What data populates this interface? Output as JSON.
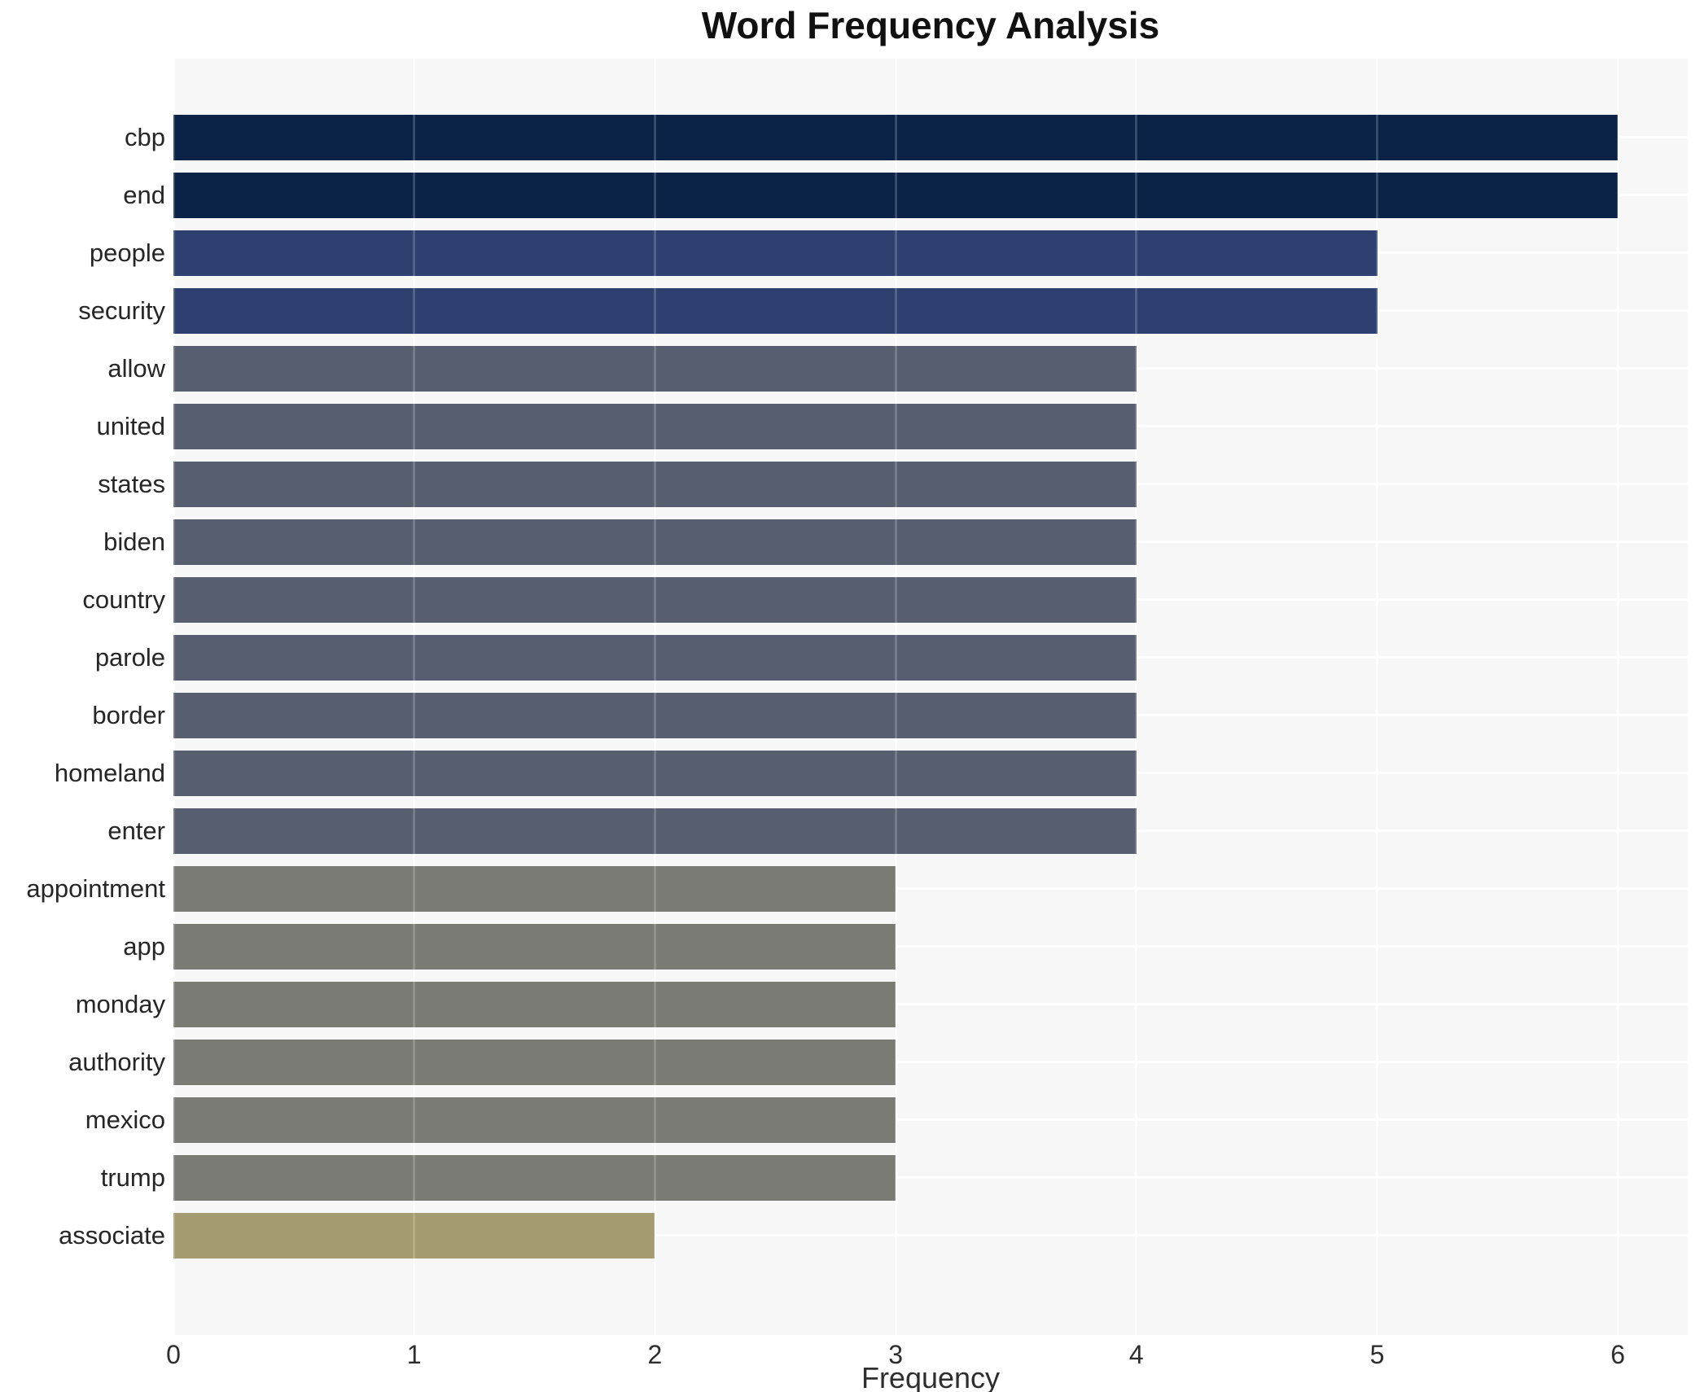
{
  "chart_data": {
    "type": "bar",
    "orientation": "horizontal",
    "title": "Word Frequency Analysis",
    "xlabel": "Frequency",
    "ylabel": "",
    "xlim": [
      0,
      6.29
    ],
    "xticks": [
      0,
      1,
      2,
      3,
      4,
      5,
      6
    ],
    "grid": true,
    "legend": "none",
    "categories": [
      "cbp",
      "end",
      "people",
      "security",
      "allow",
      "united",
      "states",
      "biden",
      "country",
      "parole",
      "border",
      "homeland",
      "enter",
      "appointment",
      "app",
      "monday",
      "authority",
      "mexico",
      "trump",
      "associate"
    ],
    "values": [
      6,
      6,
      5,
      5,
      4,
      4,
      4,
      4,
      4,
      4,
      4,
      4,
      4,
      3,
      3,
      3,
      3,
      3,
      3,
      2
    ],
    "bar_colors": [
      "#0c2348",
      "#0c2348",
      "#2e4070",
      "#2e4070",
      "#575e70",
      "#575e70",
      "#575e70",
      "#575e70",
      "#575e70",
      "#575e70",
      "#575e70",
      "#575e70",
      "#575e70",
      "#7b7b75",
      "#7b7b75",
      "#7b7b75",
      "#7b7b75",
      "#7b7b75",
      "#7b7b75",
      "#a59b70"
    ],
    "color_by_value": {
      "6": "#0c2348",
      "5": "#2e4070",
      "4": "#575e70",
      "3": "#7b7b75",
      "2": "#a59b70"
    }
  },
  "style": {
    "plot_background": "#f7f7f8",
    "gridline_color": "#ffffff",
    "tick_label_color": "#2e2e2e",
    "category_label_color": "#262626",
    "title_color": "#111111",
    "figure_background": "#ffffff"
  }
}
